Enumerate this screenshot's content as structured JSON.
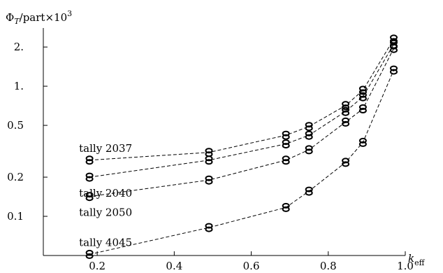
{
  "chart_data": {
    "type": "line",
    "x_scale": "linear",
    "y_scale": "log",
    "xlabel_symbol": "k",
    "xlabel_subscript": "eff",
    "ylabel_symbol": "Φ",
    "ylabel_subscript": "T",
    "ylabel_unit": "/part×10",
    "ylabel_exponent": "3",
    "xlim": [
      0.06,
      1.0
    ],
    "ylim": [
      0.05,
      2.8
    ],
    "x_ticks": [
      {
        "value": 0.2,
        "label": "0.2"
      },
      {
        "value": 0.4,
        "label": "0.4"
      },
      {
        "value": 0.6,
        "label": "0.6"
      },
      {
        "value": 0.8,
        "label": "0.8"
      },
      {
        "value": 1.0,
        "label": "1.0"
      }
    ],
    "y_ticks": [
      {
        "value": 0.1,
        "label": "0.1"
      },
      {
        "value": 0.2,
        "label": "0.2"
      },
      {
        "value": 0.5,
        "label": "0.5"
      },
      {
        "value": 1.0,
        "label": "1."
      },
      {
        "value": 2.0,
        "label": "2."
      }
    ],
    "x": [
      0.18,
      0.49,
      0.69,
      0.75,
      0.845,
      0.89,
      0.97
    ],
    "series": [
      {
        "name": "tally 2037",
        "values": [
          0.27,
          0.31,
          0.42,
          0.49,
          0.71,
          0.93,
          2.3
        ]
      },
      {
        "name": "tally 2040",
        "values": [
          0.2,
          0.27,
          0.36,
          0.42,
          0.64,
          0.83,
          2.1
        ]
      },
      {
        "name": "tally 2050",
        "values": [
          0.142,
          0.19,
          0.27,
          0.325,
          0.53,
          0.67,
          1.95
        ]
      },
      {
        "name": "tally 4045",
        "values": [
          0.051,
          0.082,
          0.117,
          0.156,
          0.26,
          0.37,
          1.33
        ]
      }
    ],
    "label_positions": [
      "above-left",
      "below-left",
      "below-left",
      "above-left"
    ],
    "grid": false,
    "legend": "none"
  }
}
